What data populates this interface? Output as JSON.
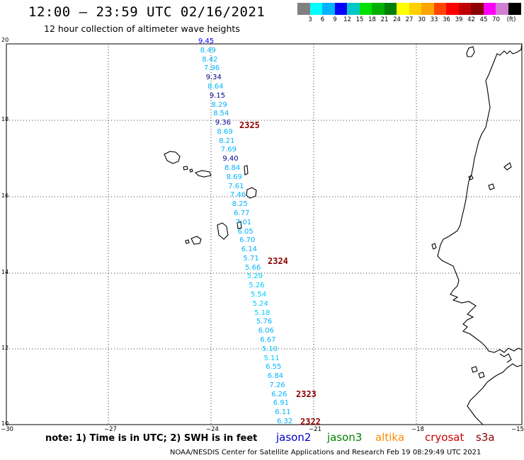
{
  "header": {
    "title": "12:00 – 23:59 UTC 02/16/2021",
    "subtitle": "12 hour collection of altimeter wave heights"
  },
  "legend": {
    "colors": [
      "#808080",
      "#00ffff",
      "#00b4ff",
      "#0000ff",
      "#00c8c8",
      "#00e000",
      "#00b000",
      "#008000",
      "#ffff00",
      "#ffd000",
      "#ffa500",
      "#ff4500",
      "#ff0000",
      "#c00000",
      "#8b0000",
      "#ff00ff",
      "#d080d0",
      "#000000"
    ],
    "labels": [
      "3",
      "6",
      "9",
      "12",
      "15",
      "18",
      "21",
      "24",
      "27",
      "30",
      "33",
      "36",
      "39",
      "42",
      "45",
      "70",
      "(ft)"
    ]
  },
  "axes": {
    "y_labels": [
      "20",
      "18",
      "16",
      "14",
      "12",
      "10"
    ],
    "x_labels": [
      "−30",
      "−27",
      "−24",
      "−21",
      "−18",
      "−15"
    ]
  },
  "track": {
    "values": [
      "9.45",
      "8.49",
      "8.42",
      "7.96",
      "9.34",
      "8.64",
      "9.15",
      "8.29",
      "8.54",
      "9.36",
      "8.69",
      "8.21",
      "7.69",
      "9.40",
      "8.84",
      "8.69",
      "7.61",
      "7.46",
      "8.25",
      "6.77",
      "7.01",
      "6.05",
      "6.70",
      "6.14",
      "5.71",
      "5.66",
      "5.29",
      "5.26",
      "5.54",
      "5.24",
      "5.18",
      "5.76",
      "6.06",
      "6.67",
      "5.10",
      "5.11",
      "6.55",
      "6.84",
      "7.26",
      "6.26",
      "6.91",
      "6.11",
      "6.32"
    ],
    "colors": [
      "#0000ff",
      "#00b4ff",
      "#00b4ff",
      "#00b4ff",
      "#00008b",
      "#00b4ff",
      "#00008b",
      "#00b4ff",
      "#00b4ff",
      "#00008b",
      "#00b4ff",
      "#00b4ff",
      "#00b4ff",
      "#00008b",
      "#00b4ff",
      "#00b4ff",
      "#00b4ff",
      "#00b4ff",
      "#00b4ff",
      "#00b4ff",
      "#00b4ff",
      "#00b4ff",
      "#00b4ff",
      "#00b4ff",
      "#00b4ff",
      "#00b4ff",
      "#00ccff",
      "#00ccff",
      "#00ccff",
      "#00ccff",
      "#00ccff",
      "#00b4ff",
      "#00b4ff",
      "#00b4ff",
      "#00ccff",
      "#00ccff",
      "#00b4ff",
      "#00b4ff",
      "#00b4ff",
      "#00b4ff",
      "#00b4ff",
      "#00b4ff",
      "#00b4ff"
    ]
  },
  "orbits": [
    "2325",
    "2324",
    "2323",
    "2322"
  ],
  "footer": {
    "note": "note: 1) Time is in UTC; 2) SWH is in feet",
    "satellites": [
      {
        "name": "jason2",
        "color": "#0000cc"
      },
      {
        "name": "jason3",
        "color": "#008000"
      },
      {
        "name": "altika",
        "color": "#ff8c00"
      },
      {
        "name": "cryosat",
        "color": "#cc0000"
      },
      {
        "name": "s3a",
        "color": "#8b0000"
      }
    ],
    "credit": "NOAA/NESDIS Center for Satellite Applications and Research   Feb 19 08:29:49 UTC 2021"
  }
}
